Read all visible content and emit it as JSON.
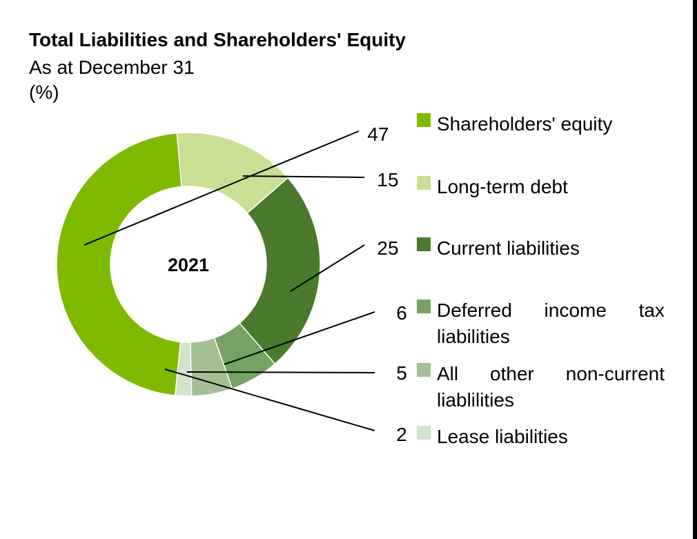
{
  "header": {
    "title": "Total Liabilities and Shareholders' Equity",
    "subtitle": "As at December 31",
    "unit": "(%)"
  },
  "chart_data": {
    "type": "pie",
    "variant": "donut",
    "center_label": "2021",
    "categories": [
      "Shareholders' equity",
      "Long-term debt",
      "Current liabilities",
      "Deferred income tax liabilities",
      "All other non-current liablilities",
      "Lease liabilities"
    ],
    "values": [
      47,
      15,
      25,
      6,
      5,
      2
    ],
    "colors": [
      "#7fba00",
      "#c9df93",
      "#4a7a2b",
      "#76a264",
      "#a3bf94",
      "#d3e3cc"
    ],
    "legend_position": "right"
  }
}
